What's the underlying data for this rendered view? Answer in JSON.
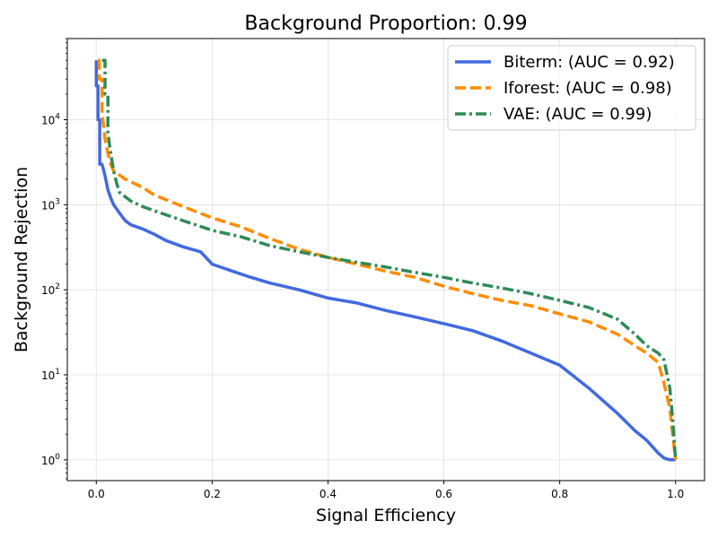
{
  "chart_data": {
    "type": "line",
    "title": "Background Proportion: 0.99",
    "xlabel": "Signal Efficiency",
    "ylabel": "Background Rejection",
    "xlim": [
      -0.05,
      1.05
    ],
    "ylim": [
      0.57,
      90000
    ],
    "yscale": "log",
    "grid": true,
    "legend_position": "top-right",
    "xticks": [
      {
        "value": 0.0,
        "label": "0.0"
      },
      {
        "value": 0.2,
        "label": "0.2"
      },
      {
        "value": 0.4,
        "label": "0.4"
      },
      {
        "value": 0.6,
        "label": "0.6"
      },
      {
        "value": 0.8,
        "label": "0.8"
      },
      {
        "value": 1.0,
        "label": "1.0"
      }
    ],
    "yticks": [
      {
        "value": 1,
        "base": "10",
        "exp": "0"
      },
      {
        "value": 10,
        "base": "10",
        "exp": "1"
      },
      {
        "value": 100,
        "base": "10",
        "exp": "2"
      },
      {
        "value": 1000,
        "base": "10",
        "exp": "3"
      },
      {
        "value": 10000,
        "base": "10",
        "exp": "4"
      }
    ],
    "series": [
      {
        "name": "Biterm: (AUC = 0.92)",
        "color": "#4169e1",
        "dash": "solid",
        "x": [
          0.0,
          0.0,
          0.003,
          0.003,
          0.006,
          0.006,
          0.01,
          0.015,
          0.02,
          0.025,
          0.03,
          0.04,
          0.05,
          0.06,
          0.08,
          0.1,
          0.12,
          0.15,
          0.18,
          0.2,
          0.23,
          0.26,
          0.3,
          0.35,
          0.4,
          0.45,
          0.5,
          0.55,
          0.6,
          0.65,
          0.7,
          0.75,
          0.8,
          0.85,
          0.9,
          0.93,
          0.95,
          0.97,
          0.98,
          0.99,
          1.0
        ],
        "y": [
          50000,
          25000,
          25000,
          10000,
          10000,
          3000,
          3000,
          2200,
          1500,
          1200,
          1000,
          800,
          650,
          580,
          520,
          450,
          380,
          320,
          280,
          200,
          170,
          145,
          120,
          100,
          80,
          70,
          57,
          48,
          40,
          33,
          25,
          18,
          13,
          7,
          3.5,
          2.2,
          1.7,
          1.2,
          1.05,
          1.0,
          1.0
        ]
      },
      {
        "name": "Iforest: (AUC = 0.98)",
        "color": "#ff8c00",
        "dash": "dashed",
        "x": [
          0.003,
          0.005,
          0.005,
          0.01,
          0.01,
          0.015,
          0.02,
          0.025,
          0.03,
          0.05,
          0.08,
          0.1,
          0.15,
          0.2,
          0.25,
          0.3,
          0.35,
          0.4,
          0.45,
          0.5,
          0.55,
          0.6,
          0.65,
          0.7,
          0.75,
          0.8,
          0.85,
          0.9,
          0.93,
          0.95,
          0.97,
          0.98,
          0.99,
          0.995,
          1.0
        ],
        "y": [
          50000,
          50000,
          30000,
          30000,
          12000,
          6000,
          4000,
          3000,
          2500,
          2000,
          1600,
          1300,
          950,
          700,
          550,
          400,
          300,
          240,
          200,
          165,
          140,
          110,
          90,
          75,
          65,
          52,
          42,
          30,
          22,
          18,
          14,
          8,
          4,
          2,
          1.0
        ]
      },
      {
        "name": "VAE: (AUC = 0.99)",
        "color": "#2e8b57",
        "dash": "dashdot",
        "x": [
          0.01,
          0.015,
          0.015,
          0.02,
          0.02,
          0.025,
          0.03,
          0.035,
          0.04,
          0.06,
          0.08,
          0.1,
          0.15,
          0.2,
          0.25,
          0.3,
          0.35,
          0.4,
          0.45,
          0.5,
          0.55,
          0.6,
          0.65,
          0.7,
          0.75,
          0.8,
          0.85,
          0.9,
          0.93,
          0.95,
          0.97,
          0.98,
          0.99,
          0.995,
          1.0
        ],
        "y": [
          50000,
          50000,
          20000,
          20000,
          7000,
          4000,
          2500,
          1800,
          1400,
          1100,
          950,
          850,
          650,
          500,
          420,
          330,
          280,
          240,
          210,
          185,
          160,
          140,
          120,
          105,
          90,
          75,
          62,
          45,
          30,
          22,
          18,
          15,
          7,
          3,
          1.0
        ]
      }
    ]
  }
}
